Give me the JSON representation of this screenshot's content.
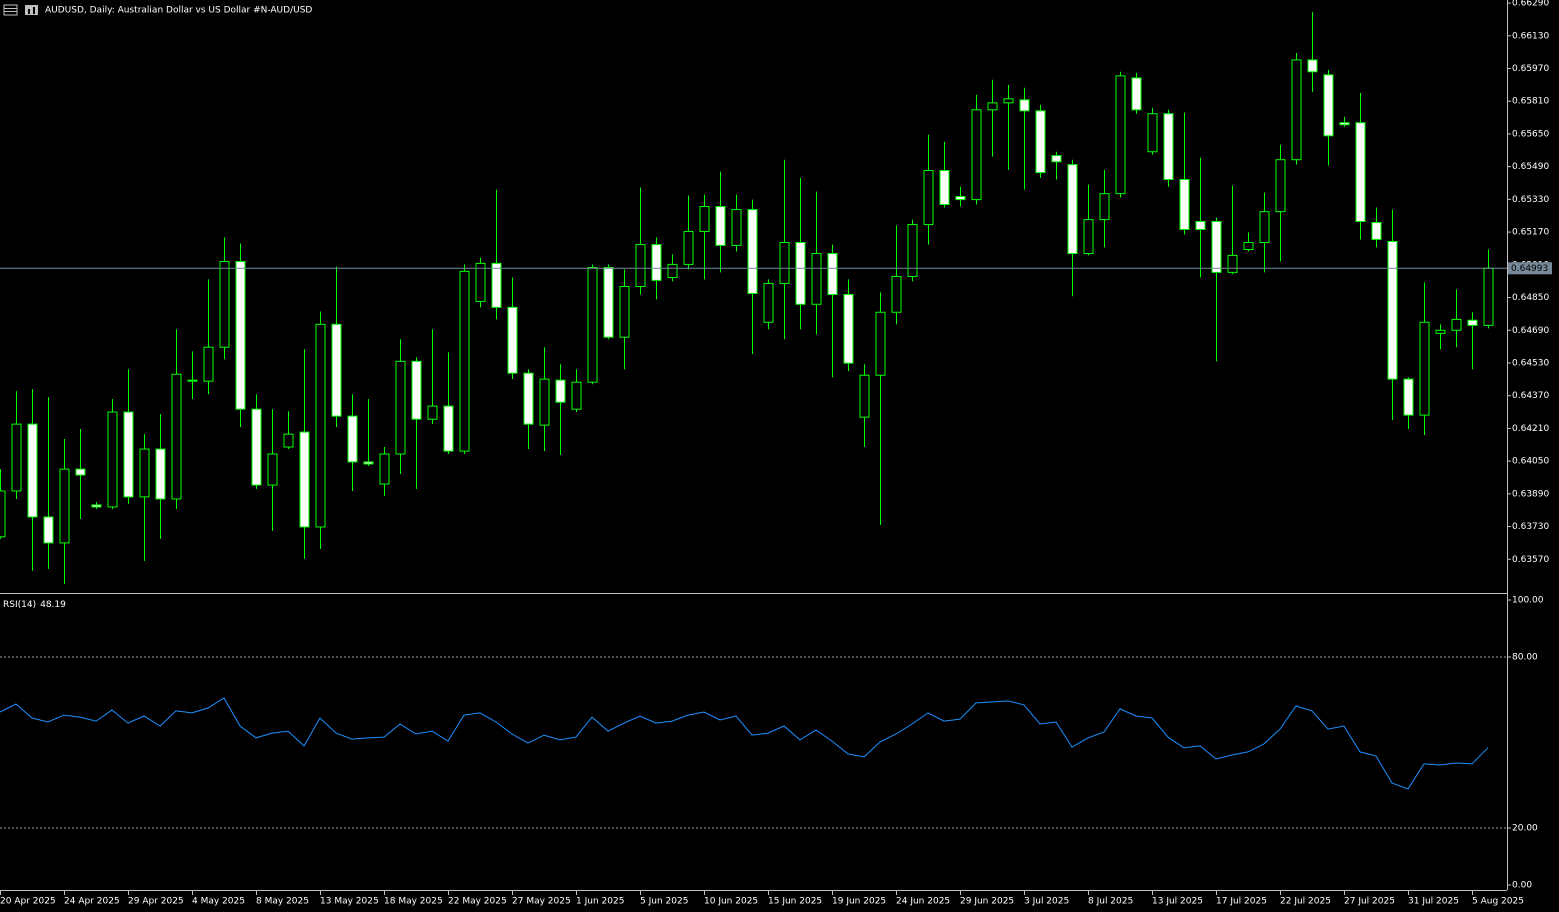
{
  "chart_data": [
    {
      "type": "candlestick",
      "title": "AUDUSD, Daily:  Australian Dollar vs US Dollar #N-AUD/USD",
      "categories": [
        "20 Apr 2025",
        null,
        null,
        null,
        "24 Apr 2025",
        null,
        null,
        null,
        "29 Apr 2025",
        null,
        null,
        null,
        "4 May 2025",
        null,
        null,
        null,
        "8 May 2025",
        null,
        null,
        null,
        "13 May 2025",
        null,
        null,
        null,
        "18 May 2025",
        null,
        null,
        null,
        "22 May 2025",
        null,
        null,
        null,
        "27 May 2025",
        null,
        null,
        null,
        "1 Jun 2025",
        null,
        null,
        null,
        "5 Jun 2025",
        null,
        null,
        null,
        "10 Jun 2025",
        null,
        null,
        null,
        "15 Jun 2025",
        null,
        null,
        null,
        "19 Jun 2025",
        null,
        null,
        null,
        "24 Jun 2025",
        null,
        null,
        null,
        "29 Jun 2025",
        null,
        null,
        null,
        "3 Jul 2025",
        null,
        null,
        null,
        "8 Jul 2025",
        null,
        null,
        null,
        "13 Jul 2025",
        null,
        null,
        null,
        "17 Jul 2025",
        null,
        null,
        null,
        "22 Jul 2025",
        null,
        null,
        null,
        "27 Jul 2025",
        null,
        null,
        null,
        "31 Jul 2025",
        null,
        null,
        null,
        "5 Aug 2025",
        null
      ],
      "open": [
        0.6368,
        0.63904,
        0.64231,
        0.63777,
        0.6365,
        0.64011,
        0.63836,
        0.63826,
        0.6429,
        0.63875,
        0.64109,
        0.63865,
        0.64441,
        0.64441,
        0.64607,
        0.65026,
        0.64304,
        0.63933,
        0.64119,
        0.64192,
        0.63728,
        0.64719,
        0.6427,
        0.64046,
        0.63938,
        0.64085,
        0.64538,
        0.64255,
        0.64319,
        0.64099,
        0.64831,
        0.65017,
        0.64802,
        0.6448,
        0.64226,
        0.64446,
        0.64304,
        0.64436,
        0.64997,
        0.64656,
        0.64904,
        0.65109,
        0.64948,
        0.65012,
        0.65173,
        0.65295,
        0.65105,
        0.6528,
        0.64729,
        0.64919,
        0.65119,
        0.64817,
        0.65065,
        0.64865,
        0.64265,
        0.6447,
        0.64778,
        0.64953,
        0.65207,
        0.65471,
        0.65344,
        0.65329,
        0.65768,
        0.65802,
        0.65817,
        0.65763,
        0.65544,
        0.655,
        0.65065,
        0.65231,
        0.65358,
        0.65924,
        0.65563,
        0.65749,
        0.65427,
        0.65222,
        0.65222,
        0.64973,
        0.65085,
        0.65119,
        0.6527,
        0.65524,
        0.66012,
        0.65939,
        0.65705,
        0.65705,
        0.65217,
        0.65124,
        0.64451,
        0.64275,
        0.64675,
        0.6469,
        0.64739,
        0.64714
      ],
      "high": [
        0.64011,
        0.64392,
        0.64402,
        0.64363,
        0.64158,
        0.64207,
        0.6385,
        0.64353,
        0.64499,
        0.64182,
        0.6428,
        0.64695,
        0.64587,
        0.64939,
        0.65144,
        0.65114,
        0.64377,
        0.64304,
        0.64294,
        0.64597,
        0.64782,
        0.65002,
        0.64377,
        0.64353,
        0.64119,
        0.64646,
        0.64558,
        0.64695,
        0.64582,
        0.65012,
        0.65046,
        0.65378,
        0.64948,
        0.64499,
        0.64607,
        0.64524,
        0.64499,
        0.65012,
        0.65012,
        0.64987,
        0.65388,
        0.65144,
        0.65061,
        0.65349,
        0.65353,
        0.65466,
        0.65353,
        0.65329,
        0.64939,
        0.65524,
        0.65436,
        0.65368,
        0.65109,
        0.64939,
        0.64524,
        0.64875,
        0.65202,
        0.65231,
        0.65646,
        0.65612,
        0.65392,
        0.65841,
        0.65915,
        0.6589,
        0.65876,
        0.65793,
        0.65563,
        0.65524,
        0.65402,
        0.65475,
        0.65954,
        0.65949,
        0.65778,
        0.65768,
        0.65754,
        0.65534,
        0.65241,
        0.65397,
        0.65168,
        0.65363,
        0.65597,
        0.66046,
        0.66246,
        0.65963,
        0.65734,
        0.65851,
        0.6529,
        0.6528,
        0.6446,
        0.64924,
        0.64719,
        0.6489,
        0.64778,
        0.65085
      ],
      "low": [
        0.6367,
        0.63865,
        0.63514,
        0.63523,
        0.6345,
        0.63767,
        0.63816,
        0.63816,
        0.63841,
        0.63562,
        0.6367,
        0.63816,
        0.64353,
        0.64377,
        0.64548,
        0.64216,
        0.63914,
        0.63709,
        0.64109,
        0.63572,
        0.63621,
        0.64216,
        0.63904,
        0.64026,
        0.6388,
        0.63987,
        0.63914,
        0.64231,
        0.64085,
        0.64085,
        0.64802,
        0.64743,
        0.64451,
        0.64109,
        0.64099,
        0.6408,
        0.6429,
        0.64426,
        0.64646,
        0.64499,
        0.64865,
        0.64841,
        0.64929,
        0.64987,
        0.64939,
        0.64973,
        0.65075,
        0.64573,
        0.64695,
        0.64646,
        0.64695,
        0.6467,
        0.6446,
        0.6449,
        0.64119,
        0.63738,
        0.64719,
        0.64929,
        0.65109,
        0.6529,
        0.65295,
        0.65305,
        0.65539,
        0.65475,
        0.65378,
        0.65436,
        0.65427,
        0.64856,
        0.65056,
        0.65095,
        0.65339,
        0.65749,
        0.65549,
        0.65392,
        0.65158,
        0.64948,
        0.64538,
        0.64963,
        0.65075,
        0.64973,
        0.65026,
        0.655,
        0.65856,
        0.65495,
        0.65685,
        0.65134,
        0.65095,
        0.64251,
        0.64207,
        0.64177,
        0.64597,
        0.64607,
        0.64499,
        0.64699
      ],
      "close": [
        0.63904,
        0.64231,
        0.63777,
        0.6365,
        0.64011,
        0.63982,
        0.63826,
        0.6429,
        0.63875,
        0.64109,
        0.63865,
        0.64475,
        0.64446,
        0.64607,
        0.65026,
        0.64304,
        0.63933,
        0.64085,
        0.64182,
        0.63728,
        0.64719,
        0.6427,
        0.64046,
        0.64036,
        0.64085,
        0.64538,
        0.64255,
        0.64319,
        0.64099,
        0.64978,
        0.65017,
        0.64802,
        0.6448,
        0.64231,
        0.64451,
        0.64338,
        0.64436,
        0.64997,
        0.64656,
        0.64904,
        0.65109,
        0.64934,
        0.65012,
        0.65173,
        0.65295,
        0.65105,
        0.6528,
        0.6487,
        0.64919,
        0.65119,
        0.64817,
        0.65065,
        0.64865,
        0.64529,
        0.6447,
        0.64778,
        0.64953,
        0.65207,
        0.65471,
        0.65305,
        0.65329,
        0.65768,
        0.65802,
        0.65822,
        0.65763,
        0.65461,
        0.65514,
        0.65065,
        0.65231,
        0.65358,
        0.65934,
        0.65768,
        0.65749,
        0.65427,
        0.65183,
        0.65183,
        0.64973,
        0.65056,
        0.65119,
        0.6527,
        0.65524,
        0.66012,
        0.65954,
        0.65641,
        0.65695,
        0.65222,
        0.65134,
        0.64451,
        0.64275,
        0.64729,
        0.6469,
        0.64743,
        0.64714,
        0.64993
      ],
      "color": "#00ff00",
      "up_fill": "#000000",
      "down_fill": "#ffffff",
      "price_line_color": "#778899",
      "ylim": [
        0.6341,
        0.66305
      ],
      "yticks": [
        {
          "value": 0.6629,
          "label": "0.66290"
        },
        {
          "value": 0.6613,
          "label": "0.66130"
        },
        {
          "value": 0.6597,
          "label": "0.65970"
        },
        {
          "value": 0.6581,
          "label": "0.65810"
        },
        {
          "value": 0.6565,
          "label": "0.65650"
        },
        {
          "value": 0.6549,
          "label": "0.65490"
        },
        {
          "value": 0.6533,
          "label": "0.65330"
        },
        {
          "value": 0.6517,
          "label": "0.65170"
        },
        {
          "value": 0.6501,
          "label": "0.65010"
        },
        {
          "value": 0.6485,
          "label": "0.64850"
        },
        {
          "value": 0.6469,
          "label": "0.64690"
        },
        {
          "value": 0.6453,
          "label": "0.64530"
        },
        {
          "value": 0.6437,
          "label": "0.64370"
        },
        {
          "value": 0.6421,
          "label": "0.64210"
        },
        {
          "value": 0.6405,
          "label": "0.64050"
        },
        {
          "value": 0.6389,
          "label": "0.63890"
        },
        {
          "value": 0.6373,
          "label": "0.63730"
        },
        {
          "value": 0.6357,
          "label": "0.63570"
        }
      ]
    },
    {
      "type": "line",
      "title": "RSI(14)",
      "color": "#1e90ff",
      "values": [
        60.7,
        63.5,
        58.6,
        57.2,
        59.6,
        58.9,
        57.5,
        61.4,
        56.8,
        59.3,
        55.8,
        61.1,
        60.4,
        62.1,
        65.6,
        55.8,
        51.6,
        53.3,
        54.0,
        48.8,
        58.6,
        53.3,
        51.2,
        51.6,
        51.9,
        56.5,
        53.0,
        54.0,
        50.5,
        59.6,
        60.4,
        57.2,
        53.0,
        49.8,
        52.6,
        50.9,
        51.9,
        58.9,
        54.0,
        56.8,
        59.3,
        56.8,
        57.5,
        59.6,
        60.7,
        57.9,
        59.3,
        52.6,
        53.3,
        55.8,
        50.9,
        54.4,
        50.5,
        46.0,
        44.9,
        50.2,
        53.0,
        56.5,
        60.4,
        57.5,
        58.2,
        63.9,
        64.2,
        64.6,
        63.2,
        56.5,
        57.2,
        48.4,
        51.6,
        53.7,
        61.8,
        59.3,
        58.6,
        51.9,
        48.1,
        48.8,
        44.2,
        45.6,
        46.7,
        49.5,
        54.7,
        62.8,
        61.1,
        54.7,
        55.8,
        46.7,
        45.3,
        35.8,
        33.7,
        42.5,
        42.1,
        42.8,
        42.5,
        48.19
      ],
      "ylim": [
        0,
        100
      ],
      "yticks": [
        {
          "value": 100,
          "label": "100.00"
        },
        {
          "value": 80,
          "label": "80.00"
        },
        {
          "value": 20,
          "label": "20.00"
        },
        {
          "value": 0,
          "label": "0.00"
        }
      ],
      "levels": [
        80,
        20
      ]
    }
  ]
}
